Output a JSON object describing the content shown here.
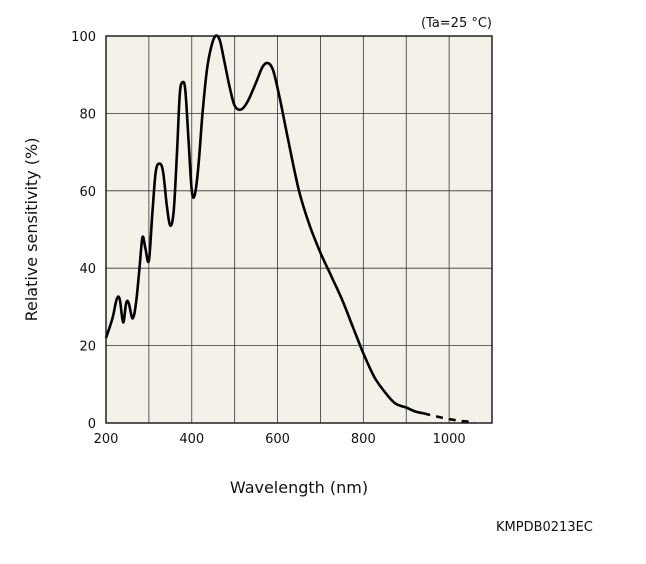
{
  "chart_data": {
    "type": "line",
    "title": "",
    "condition_note": "(Ta=25 °C)",
    "xlabel": "Wavelength (nm)",
    "ylabel": "Relative sensitivity (%)",
    "xlim": [
      200,
      1100
    ],
    "ylim": [
      0,
      100
    ],
    "x_ticks": [
      200,
      400,
      600,
      800,
      1000
    ],
    "y_ticks": [
      0,
      20,
      40,
      60,
      80,
      100
    ],
    "grid": true,
    "colors": {
      "background": "#f4f2e8",
      "line": "#000000",
      "grid": "#333333"
    },
    "series": [
      {
        "style": "solid",
        "points": [
          [
            200,
            22
          ],
          [
            215,
            27
          ],
          [
            225,
            32
          ],
          [
            232,
            32
          ],
          [
            240,
            26
          ],
          [
            247,
            31
          ],
          [
            253,
            31
          ],
          [
            262,
            27
          ],
          [
            270,
            31
          ],
          [
            278,
            40
          ],
          [
            285,
            48
          ],
          [
            292,
            45
          ],
          [
            300,
            42
          ],
          [
            308,
            54
          ],
          [
            316,
            65
          ],
          [
            325,
            67
          ],
          [
            333,
            65
          ],
          [
            342,
            56
          ],
          [
            350,
            51
          ],
          [
            358,
            55
          ],
          [
            366,
            71
          ],
          [
            372,
            85
          ],
          [
            378,
            88
          ],
          [
            385,
            86
          ],
          [
            393,
            72
          ],
          [
            400,
            60
          ],
          [
            407,
            59
          ],
          [
            416,
            67
          ],
          [
            425,
            80
          ],
          [
            435,
            91
          ],
          [
            445,
            97
          ],
          [
            455,
            100
          ],
          [
            465,
            99
          ],
          [
            475,
            94
          ],
          [
            488,
            87
          ],
          [
            500,
            82
          ],
          [
            515,
            81
          ],
          [
            530,
            83
          ],
          [
            550,
            88
          ],
          [
            565,
            92
          ],
          [
            578,
            93
          ],
          [
            590,
            91
          ],
          [
            605,
            84
          ],
          [
            625,
            73
          ],
          [
            650,
            60
          ],
          [
            675,
            51
          ],
          [
            700,
            44
          ],
          [
            725,
            38
          ],
          [
            750,
            32
          ],
          [
            775,
            25
          ],
          [
            800,
            18
          ],
          [
            825,
            12
          ],
          [
            850,
            8
          ],
          [
            875,
            5
          ],
          [
            900,
            4
          ],
          [
            920,
            3
          ],
          [
            940,
            2.5
          ]
        ]
      },
      {
        "style": "dashed",
        "points": [
          [
            940,
            2.5
          ],
          [
            970,
            1.7
          ],
          [
            1000,
            1
          ],
          [
            1030,
            0.5
          ],
          [
            1060,
            0.2
          ]
        ]
      }
    ]
  },
  "figure_code": "KMPDB0213EC"
}
